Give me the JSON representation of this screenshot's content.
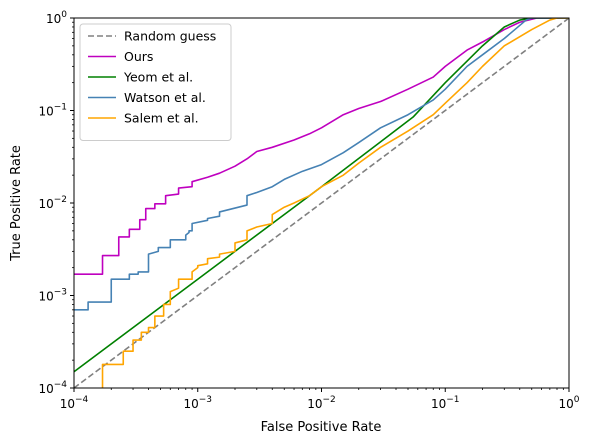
{
  "chart_data": {
    "type": "line",
    "xlabel": "False Positive Rate",
    "ylabel": "True Positive Rate",
    "xscale": "log",
    "yscale": "log",
    "xlim": [
      0.0001,
      1
    ],
    "ylim": [
      0.0001,
      1
    ],
    "xticks": [
      {
        "value": 0.0001,
        "base": "10",
        "exp": "−4"
      },
      {
        "value": 0.001,
        "base": "10",
        "exp": "−3"
      },
      {
        "value": 0.01,
        "base": "10",
        "exp": "−2"
      },
      {
        "value": 0.1,
        "base": "10",
        "exp": "−1"
      },
      {
        "value": 1,
        "base": "10",
        "exp": "0"
      }
    ],
    "yticks": [
      {
        "value": 0.0001,
        "base": "10",
        "exp": "−4"
      },
      {
        "value": 0.001,
        "base": "10",
        "exp": "−3"
      },
      {
        "value": 0.01,
        "base": "10",
        "exp": "−2"
      },
      {
        "value": 0.1,
        "base": "10",
        "exp": "−1"
      },
      {
        "value": 1,
        "base": "10",
        "exp": "0"
      }
    ],
    "grid": false,
    "legend_position": "top-left",
    "series": [
      {
        "name": "Random guess",
        "color": "#808080",
        "dash": true,
        "step": false,
        "points": [
          [
            0.0001,
            0.0001
          ],
          [
            1,
            1
          ]
        ]
      },
      {
        "name": "Ours",
        "color": "#bf00bf",
        "dash": false,
        "step": true,
        "points": [
          [
            0.0001,
            0.0017
          ],
          [
            0.00017,
            0.0017
          ],
          [
            0.00017,
            0.0027
          ],
          [
            0.00023,
            0.0027
          ],
          [
            0.00023,
            0.0043
          ],
          [
            0.00028,
            0.0043
          ],
          [
            0.00028,
            0.0052
          ],
          [
            0.00034,
            0.0052
          ],
          [
            0.00034,
            0.0066
          ],
          [
            0.00038,
            0.0066
          ],
          [
            0.00038,
            0.0087
          ],
          [
            0.00045,
            0.0087
          ],
          [
            0.00045,
            0.0098
          ],
          [
            0.00055,
            0.0098
          ],
          [
            0.00055,
            0.012
          ],
          [
            0.0007,
            0.0125
          ],
          [
            0.0007,
            0.0145
          ],
          [
            0.0009,
            0.015
          ],
          [
            0.0009,
            0.017
          ],
          [
            0.0012,
            0.019
          ],
          [
            0.0015,
            0.021
          ],
          [
            0.002,
            0.025
          ],
          [
            0.0025,
            0.03
          ],
          [
            0.003,
            0.036
          ],
          [
            0.004,
            0.04
          ],
          [
            0.006,
            0.048
          ],
          [
            0.008,
            0.056
          ],
          [
            0.01,
            0.065
          ],
          [
            0.015,
            0.09
          ],
          [
            0.02,
            0.105
          ],
          [
            0.03,
            0.125
          ],
          [
            0.05,
            0.17
          ],
          [
            0.08,
            0.23
          ],
          [
            0.1,
            0.3
          ],
          [
            0.15,
            0.45
          ],
          [
            0.2,
            0.55
          ],
          [
            0.3,
            0.75
          ],
          [
            0.4,
            0.9
          ],
          [
            0.55,
            1.0
          ],
          [
            1,
            1
          ]
        ]
      },
      {
        "name": "Yeom et al.",
        "color": "#008000",
        "dash": false,
        "step": false,
        "points": [
          [
            0.0001,
            0.00015
          ],
          [
            0.001,
            0.0015
          ],
          [
            0.01,
            0.015
          ],
          [
            0.055,
            0.085
          ],
          [
            0.1,
            0.2
          ],
          [
            0.2,
            0.5
          ],
          [
            0.3,
            0.8
          ],
          [
            0.4,
            0.95
          ],
          [
            0.5,
            1.0
          ],
          [
            1,
            1
          ]
        ]
      },
      {
        "name": "Watson et al.",
        "color": "#4682b4",
        "dash": false,
        "step": true,
        "points": [
          [
            0.0001,
            0.0007
          ],
          [
            0.00013,
            0.0007
          ],
          [
            0.00013,
            0.00085
          ],
          [
            0.0002,
            0.00085
          ],
          [
            0.0002,
            0.0015
          ],
          [
            0.00028,
            0.0015
          ],
          [
            0.00028,
            0.0017
          ],
          [
            0.00033,
            0.0017
          ],
          [
            0.00033,
            0.0018
          ],
          [
            0.0004,
            0.0018
          ],
          [
            0.0004,
            0.0028
          ],
          [
            0.00048,
            0.003
          ],
          [
            0.00048,
            0.0033
          ],
          [
            0.0006,
            0.0033
          ],
          [
            0.0006,
            0.004
          ],
          [
            0.0008,
            0.004
          ],
          [
            0.0008,
            0.0045
          ],
          [
            0.00085,
            0.0048
          ],
          [
            0.00085,
            0.005
          ],
          [
            0.0009,
            0.005
          ],
          [
            0.0009,
            0.006
          ],
          [
            0.0012,
            0.0065
          ],
          [
            0.0012,
            0.0068
          ],
          [
            0.0015,
            0.0072
          ],
          [
            0.0015,
            0.008
          ],
          [
            0.0025,
            0.0095
          ],
          [
            0.0025,
            0.012
          ],
          [
            0.003,
            0.013
          ],
          [
            0.004,
            0.015
          ],
          [
            0.005,
            0.018
          ],
          [
            0.007,
            0.022
          ],
          [
            0.01,
            0.026
          ],
          [
            0.015,
            0.035
          ],
          [
            0.02,
            0.045
          ],
          [
            0.03,
            0.065
          ],
          [
            0.05,
            0.09
          ],
          [
            0.08,
            0.13
          ],
          [
            0.1,
            0.17
          ],
          [
            0.15,
            0.3
          ],
          [
            0.2,
            0.4
          ],
          [
            0.3,
            0.6
          ],
          [
            0.45,
            0.95
          ],
          [
            0.5,
            1.0
          ],
          [
            1,
            1
          ]
        ]
      },
      {
        "name": "Salem et al.",
        "color": "#ffa500",
        "dash": false,
        "step": true,
        "points": [
          [
            0.00017,
            0.0001
          ],
          [
            0.00017,
            0.00018
          ],
          [
            0.00025,
            0.00018
          ],
          [
            0.00025,
            0.00025
          ],
          [
            0.0003,
            0.00025
          ],
          [
            0.0003,
            0.00033
          ],
          [
            0.00035,
            0.00033
          ],
          [
            0.00035,
            0.0004
          ],
          [
            0.0004,
            0.0004
          ],
          [
            0.0004,
            0.00045
          ],
          [
            0.00045,
            0.00045
          ],
          [
            0.00045,
            0.0006
          ],
          [
            0.00053,
            0.0006
          ],
          [
            0.00053,
            0.0008
          ],
          [
            0.0006,
            0.0008
          ],
          [
            0.0006,
            0.0011
          ],
          [
            0.0007,
            0.0012
          ],
          [
            0.0007,
            0.0015
          ],
          [
            0.0009,
            0.0015
          ],
          [
            0.0009,
            0.0018
          ],
          [
            0.001,
            0.002
          ],
          [
            0.001,
            0.0021
          ],
          [
            0.0012,
            0.0022
          ],
          [
            0.0012,
            0.0025
          ],
          [
            0.0015,
            0.0026
          ],
          [
            0.0015,
            0.0028
          ],
          [
            0.002,
            0.003
          ],
          [
            0.002,
            0.0037
          ],
          [
            0.0025,
            0.004
          ],
          [
            0.0025,
            0.005
          ],
          [
            0.003,
            0.0055
          ],
          [
            0.004,
            0.006
          ],
          [
            0.004,
            0.0075
          ],
          [
            0.005,
            0.009
          ],
          [
            0.006,
            0.01
          ],
          [
            0.008,
            0.012
          ],
          [
            0.01,
            0.015
          ],
          [
            0.015,
            0.02
          ],
          [
            0.02,
            0.027
          ],
          [
            0.03,
            0.04
          ],
          [
            0.05,
            0.06
          ],
          [
            0.08,
            0.09
          ],
          [
            0.1,
            0.12
          ],
          [
            0.15,
            0.2
          ],
          [
            0.2,
            0.3
          ],
          [
            0.3,
            0.5
          ],
          [
            0.5,
            0.75
          ],
          [
            0.7,
            0.95
          ],
          [
            0.8,
            1.0
          ],
          [
            1,
            1
          ]
        ]
      }
    ]
  }
}
